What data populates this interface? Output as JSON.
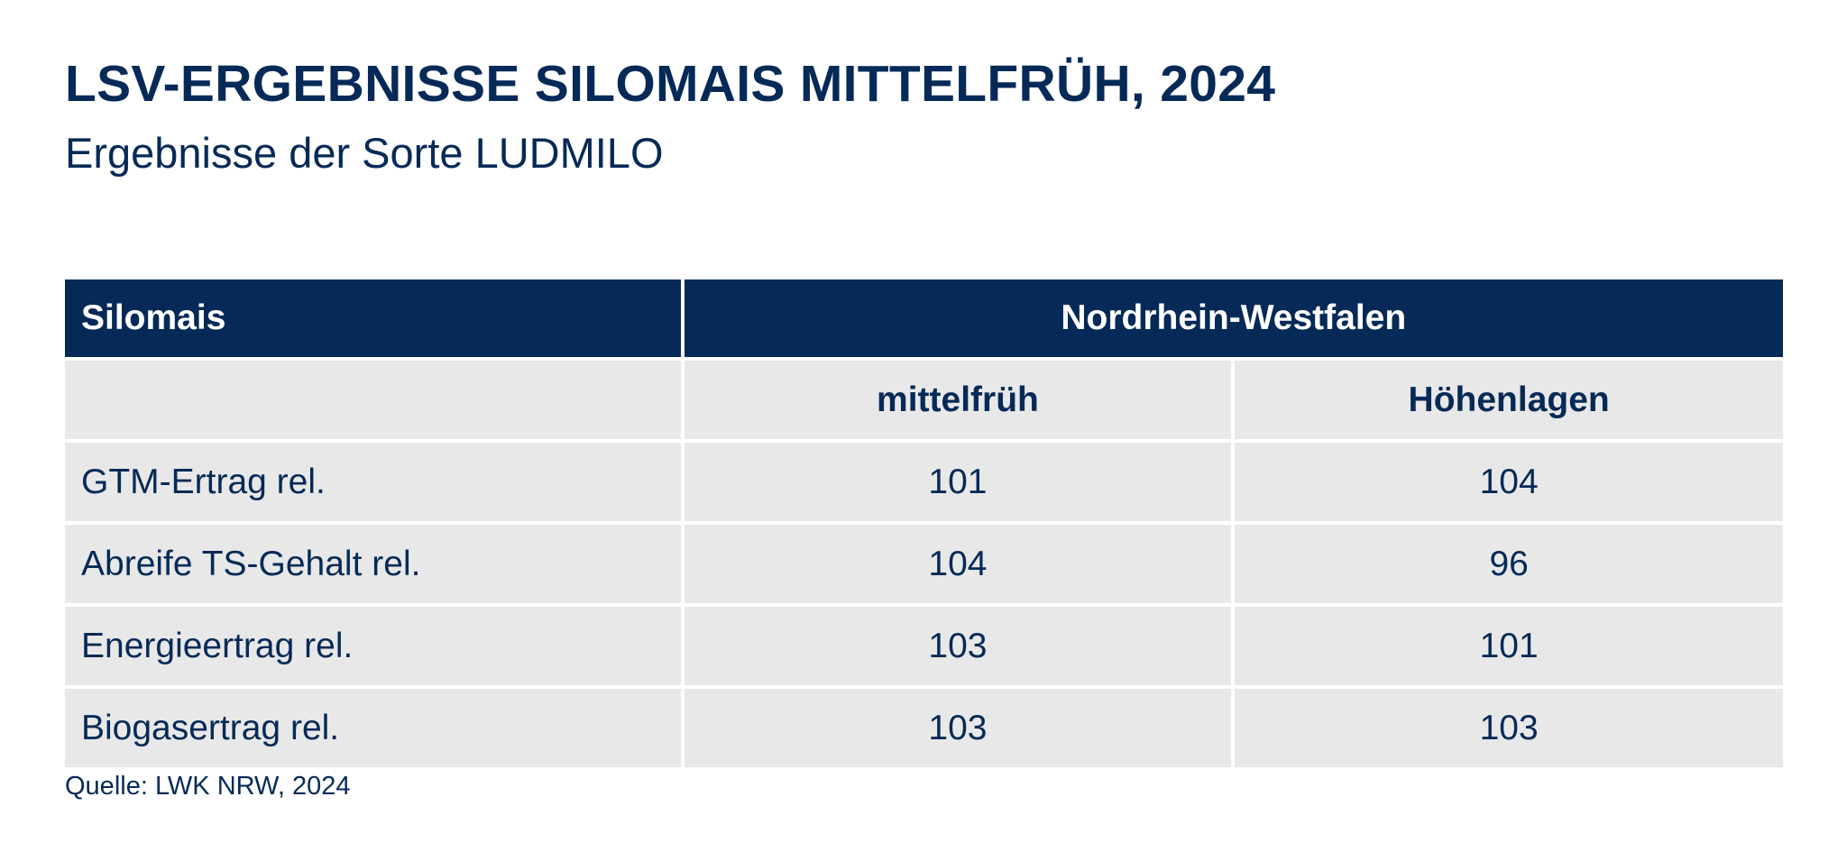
{
  "title": "LSV-ERGEBNISSE SILOMAIS MITTELFRÜH, 2024",
  "subtitle": "Ergebnisse der Sorte LUDMILO",
  "table": {
    "header_label": "Silomais",
    "region": "Nordrhein-Westfalen",
    "columns": [
      "mittelfrüh",
      "Höhenlagen"
    ],
    "rows": [
      {
        "label": "GTM-Ertrag rel.",
        "values": [
          "101",
          "104"
        ]
      },
      {
        "label": "Abreife TS-Gehalt rel.",
        "values": [
          "104",
          "96"
        ]
      },
      {
        "label": "Energieertrag rel.",
        "values": [
          "103",
          "101"
        ]
      },
      {
        "label": "Biogasertrag rel.",
        "values": [
          "103",
          "103"
        ]
      }
    ]
  },
  "source": "Quelle: LWK NRW, 2024",
  "colors": {
    "navy": "#062a57",
    "cell_bg": "#e8e8e8",
    "white": "#ffffff"
  }
}
